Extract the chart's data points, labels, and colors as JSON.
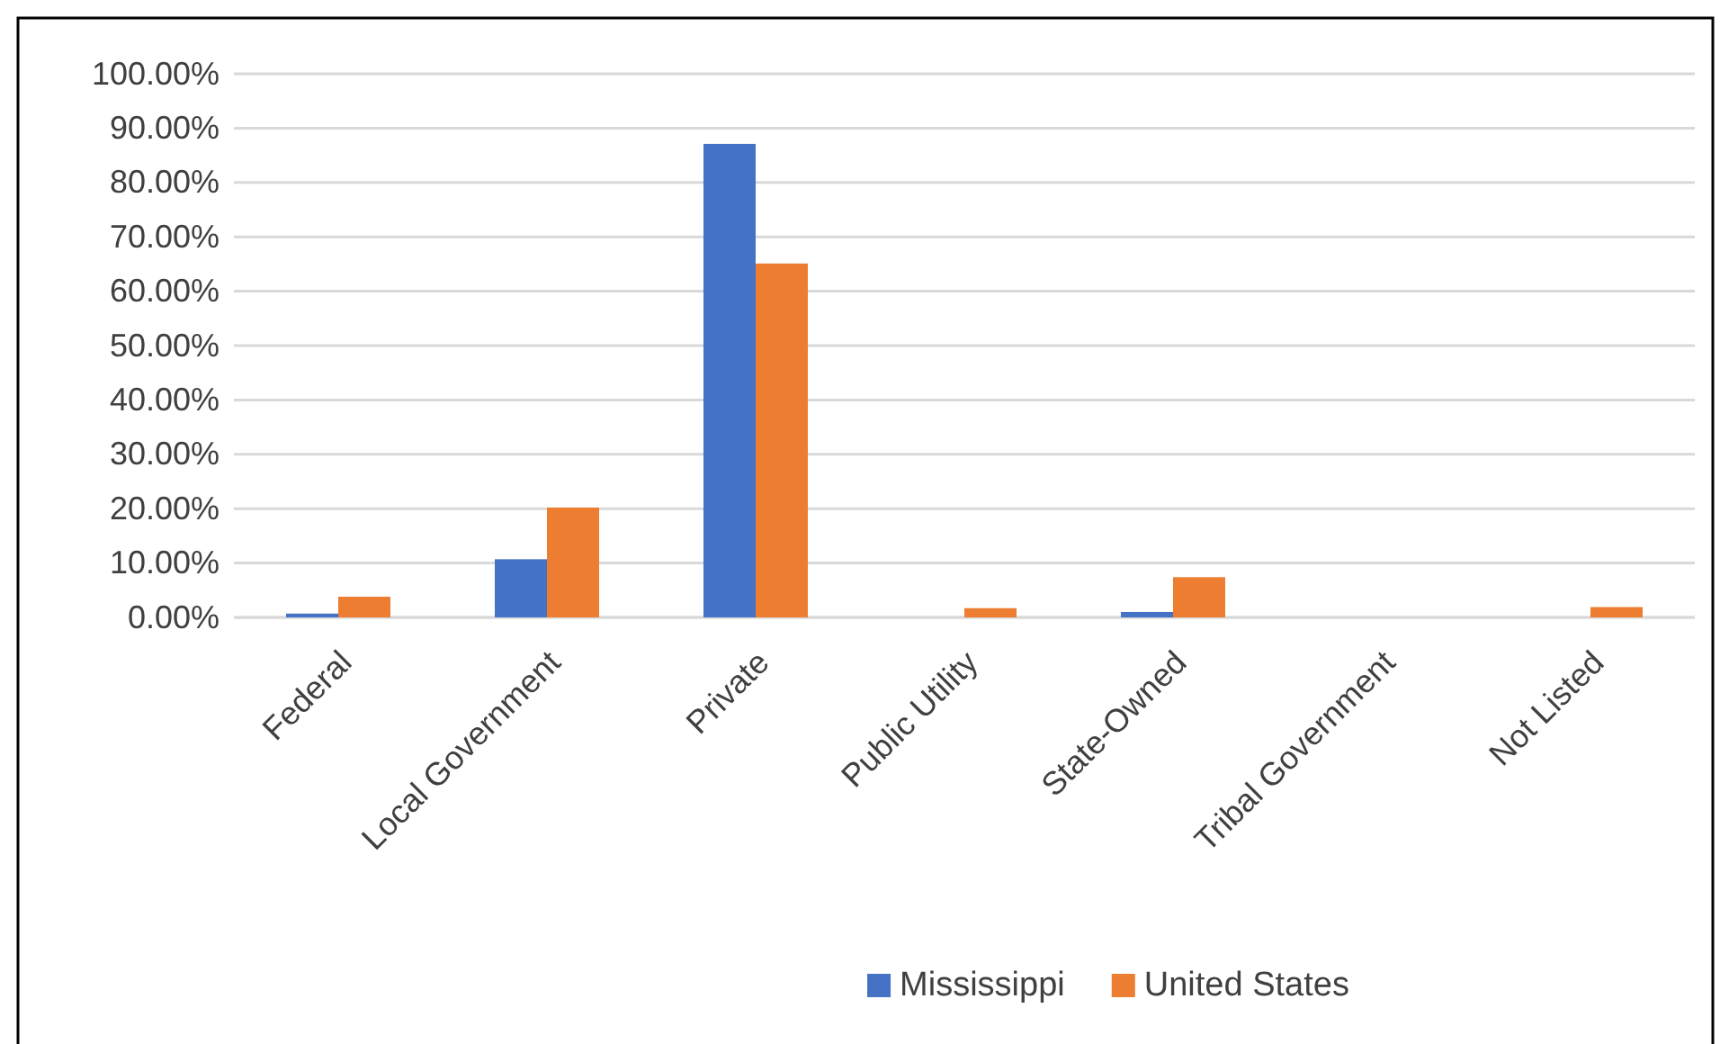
{
  "chart_data": {
    "type": "bar",
    "categories": [
      "Federal",
      "Local Government",
      "Private",
      "Public Utility",
      "State-Owned",
      "Tribal Government",
      "Not Listed"
    ],
    "series": [
      {
        "name": "Mississippi",
        "color": "#4472c4",
        "values": [
          0.7,
          10.7,
          87.1,
          0,
          1.0,
          0,
          0
        ]
      },
      {
        "name": "United States",
        "color": "#ed7d31",
        "values": [
          3.8,
          20.2,
          65.1,
          1.7,
          7.4,
          0,
          1.9
        ]
      }
    ],
    "ylim": [
      0,
      100
    ],
    "yticks": [
      {
        "value": 0,
        "label": "0.00%"
      },
      {
        "value": 10,
        "label": "10.00%"
      },
      {
        "value": 20,
        "label": "20.00%"
      },
      {
        "value": 30,
        "label": "30.00%"
      },
      {
        "value": 40,
        "label": "40.00%"
      },
      {
        "value": 50,
        "label": "50.00%"
      },
      {
        "value": 60,
        "label": "60.00%"
      },
      {
        "value": 70,
        "label": "70.00%"
      },
      {
        "value": 80,
        "label": "80.00%"
      },
      {
        "value": 90,
        "label": "90.00%"
      },
      {
        "value": 100,
        "label": "100.00%"
      }
    ],
    "grid": "y",
    "legend": "bottom"
  }
}
